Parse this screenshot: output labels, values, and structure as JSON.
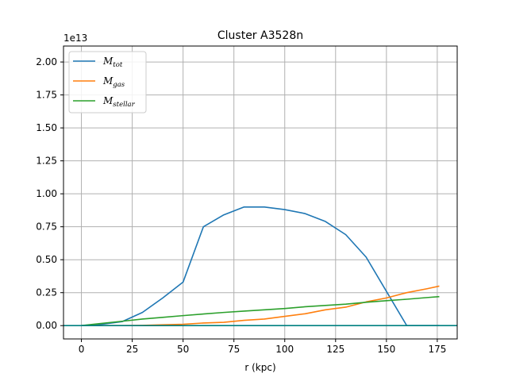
{
  "chart_data": {
    "type": "line",
    "title": "Cluster A3528n",
    "xlabel": "r (kpc)",
    "ylabel": "",
    "y_offset_text": "1e13",
    "xlim": [
      -8.8,
      184.8
    ],
    "ylim": [
      -0.101,
      2.121
    ],
    "xticks": [
      0,
      25,
      50,
      75,
      100,
      125,
      150,
      175
    ],
    "xtick_labels": [
      "0",
      "25",
      "50",
      "75",
      "100",
      "125",
      "150",
      "175"
    ],
    "yticks": [
      0,
      0.25,
      0.5,
      0.75,
      1.0,
      1.25,
      1.5,
      1.75,
      2.0
    ],
    "ytick_labels": [
      "0.00",
      "0.25",
      "0.50",
      "0.75",
      "1.00",
      "1.25",
      "1.50",
      "1.75",
      "2.00"
    ],
    "grid": true,
    "legend_position": "upper-left",
    "x": [
      0,
      10,
      20,
      30,
      40,
      50,
      60,
      70,
      80,
      90,
      100,
      110,
      120,
      130,
      140,
      150,
      160,
      170,
      176
    ],
    "series": [
      {
        "name": "M_tot",
        "label_main": "M",
        "label_sub": "tot",
        "color": "#1f77b4",
        "values": [
          0.0,
          0.01,
          0.03,
          0.1,
          0.21,
          0.33,
          0.75,
          0.84,
          0.9,
          0.9,
          0.88,
          0.85,
          0.79,
          0.69,
          0.52,
          0.26,
          0.0,
          0.0,
          0.0
        ]
      },
      {
        "name": "M_gas",
        "label_main": "M",
        "label_sub": "gas",
        "color": "#ff7f0e",
        "values": [
          0.0,
          0.0,
          0.0,
          0.002,
          0.006,
          0.01,
          0.02,
          0.025,
          0.04,
          0.05,
          0.07,
          0.09,
          0.12,
          0.14,
          0.18,
          0.21,
          0.25,
          0.28,
          0.3
        ]
      },
      {
        "name": "M_stellar",
        "label_main": "M",
        "label_sub": "stellar",
        "color": "#2ca02c",
        "values": [
          0.0,
          0.017,
          0.033,
          0.05,
          0.063,
          0.076,
          0.088,
          0.1,
          0.11,
          0.12,
          0.13,
          0.143,
          0.153,
          0.163,
          0.177,
          0.189,
          0.2,
          0.213,
          0.22
        ]
      }
    ],
    "hline": {
      "y": 0.0,
      "color": "#008080"
    }
  }
}
